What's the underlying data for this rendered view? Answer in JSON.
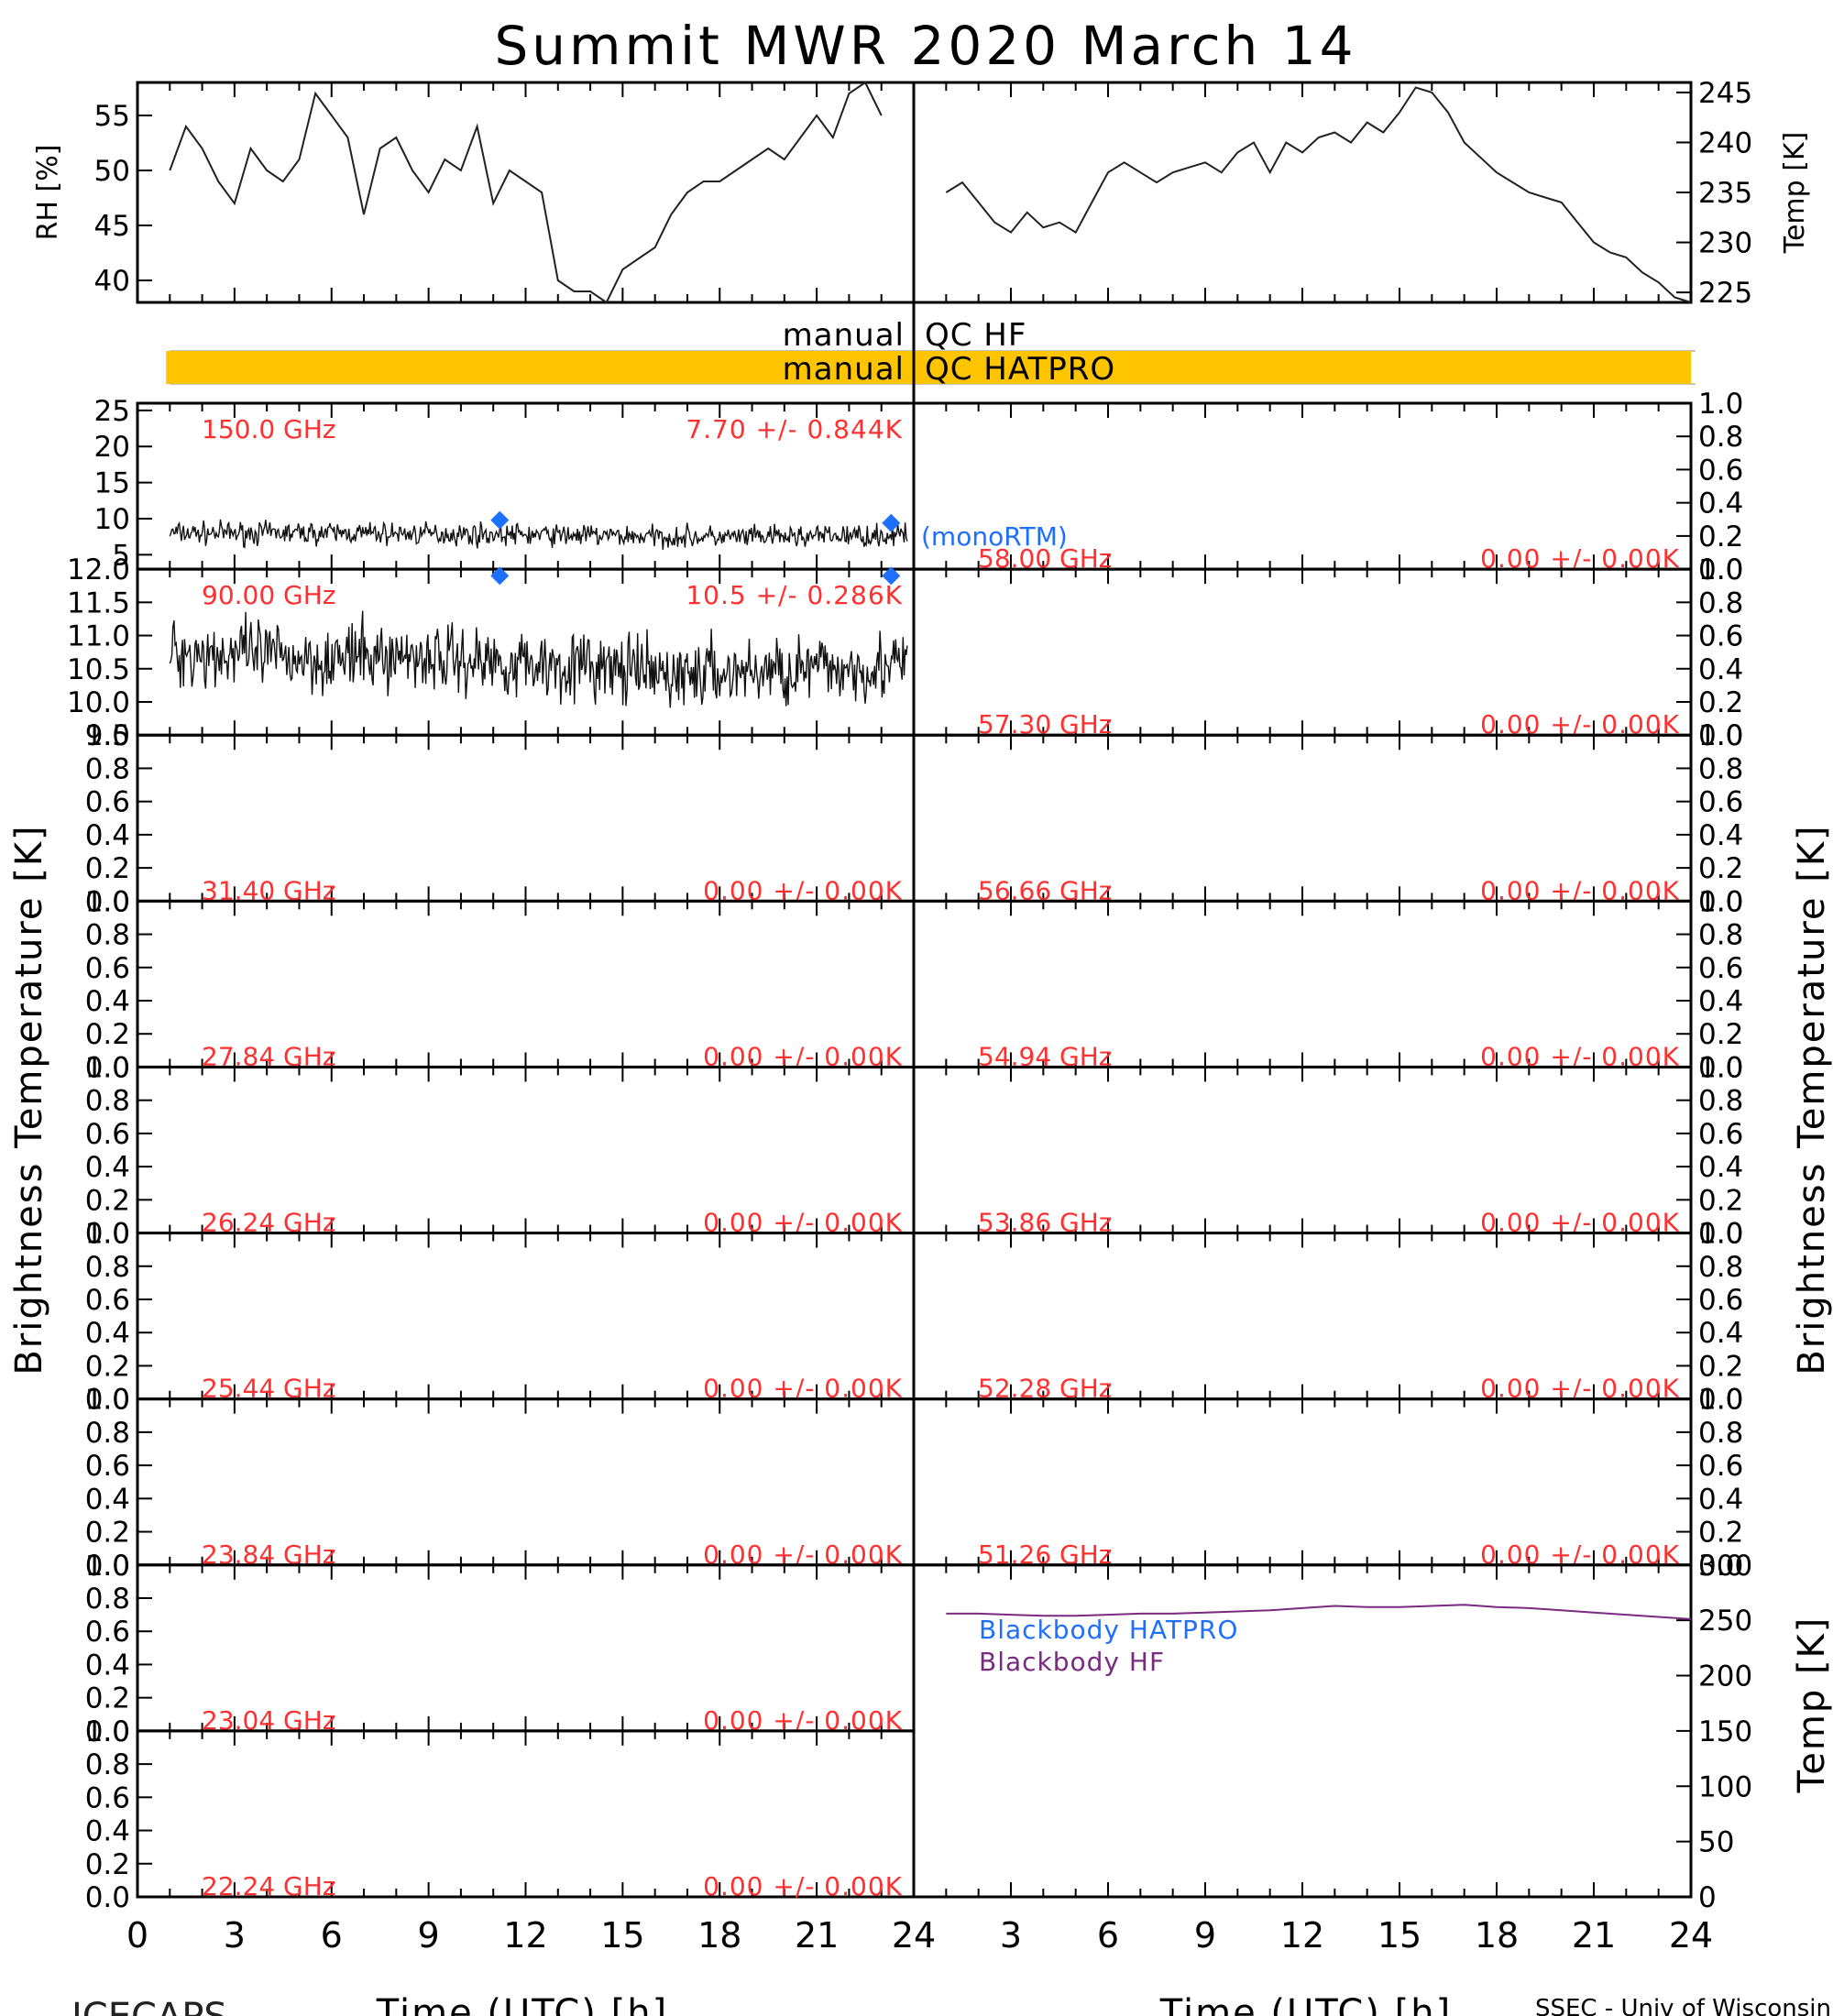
{
  "title": "Summit MWR 2020 March 14",
  "footer": {
    "left": "ICECAPS",
    "right": "SSEC - Univ of Wisconsin"
  },
  "colors": {
    "accent_text": "#ff3030",
    "qc_bar": "#ffc400",
    "blue": "#1f6fff",
    "purple": "#7a2a80",
    "ink": "#000000"
  },
  "x_axis": {
    "label": "Time (UTC) [h]",
    "ticks": [
      "0",
      "3",
      "6",
      "9",
      "12",
      "15",
      "18",
      "21",
      "24"
    ],
    "xlim": [
      0,
      24
    ]
  },
  "side_labels": {
    "left": "Brightness Temperature [K]",
    "right": "Brightness Temperature [K]",
    "bb_right": "Temp [K]"
  },
  "chart_data": [
    {
      "type": "line",
      "id": "rh",
      "ylabel": "RH [%]",
      "ylim": [
        38,
        58
      ],
      "yticks": [
        "40",
        "45",
        "50",
        "55"
      ],
      "x": [
        1.0,
        1.5,
        2.0,
        2.5,
        3.0,
        3.5,
        4.0,
        4.5,
        5.0,
        5.5,
        6.0,
        6.5,
        7.0,
        7.5,
        8.0,
        8.5,
        9.0,
        9.5,
        10.0,
        10.5,
        11.0,
        11.5,
        12.0,
        12.5,
        13.0,
        13.5,
        14.0,
        14.5,
        15.0,
        15.5,
        16.0,
        16.5,
        17.0,
        17.5,
        18.0,
        18.5,
        19.0,
        19.5,
        20.0,
        20.5,
        21.0,
        21.5,
        22.0,
        22.5,
        23.0
      ],
      "y": [
        50.0,
        54.0,
        52.0,
        49.0,
        47.0,
        52.0,
        50.0,
        49.0,
        51.0,
        57.0,
        55.0,
        53.0,
        46.0,
        52.0,
        53.0,
        50.0,
        48.0,
        51.0,
        50.0,
        54.0,
        47.0,
        50.0,
        49.0,
        48.0,
        40.0,
        39.0,
        39.0,
        38.0,
        41.0,
        42.0,
        43.0,
        46.0,
        48.0,
        49.0,
        49.0,
        50.0,
        51.0,
        52.0,
        51.0,
        53.0,
        55.0,
        53.0,
        57.0,
        58.0,
        55.0
      ]
    },
    {
      "type": "line",
      "id": "temp",
      "ylabel": "Temp [K]",
      "ylim": [
        224,
        246
      ],
      "yticks": [
        "225",
        "230",
        "235",
        "240",
        "245"
      ],
      "x": [
        1.0,
        1.5,
        2.0,
        2.5,
        3.0,
        3.5,
        4.0,
        4.5,
        5.0,
        5.5,
        6.0,
        6.5,
        7.0,
        7.5,
        8.0,
        8.5,
        9.0,
        9.5,
        10.0,
        10.5,
        11.0,
        11.5,
        12.0,
        12.5,
        13.0,
        13.5,
        14.0,
        14.5,
        15.0,
        15.5,
        16.0,
        16.5,
        17.0,
        17.5,
        18.0,
        18.5,
        19.0,
        19.5,
        20.0,
        20.5,
        21.0,
        21.5,
        22.0,
        22.5,
        23.0,
        23.5,
        24.0
      ],
      "y": [
        235.0,
        236.0,
        234.0,
        232.0,
        231.0,
        233.0,
        231.5,
        232.0,
        231.0,
        234.0,
        237.0,
        238.0,
        237.0,
        236.0,
        237.0,
        237.5,
        238.0,
        237.0,
        239.0,
        240.0,
        237.0,
        240.0,
        239.0,
        240.5,
        241.0,
        240.0,
        242.0,
        241.0,
        243.0,
        245.5,
        245.0,
        243.0,
        240.0,
        238.5,
        237.0,
        236.0,
        235.0,
        234.5,
        234.0,
        232.0,
        230.0,
        229.0,
        228.5,
        227.0,
        226.0,
        224.5,
        224.0
      ]
    },
    {
      "type": "timeline",
      "id": "qc",
      "rows": [
        {
          "label": "manual QC HF",
          "bar": false
        },
        {
          "label": "manual QC HATPRO",
          "bar": true,
          "x_range": [
            0.8,
            24.0
          ]
        }
      ]
    },
    {
      "type": "line",
      "id": "tb-150",
      "channel": "150.0 GHz",
      "stat": "7.70 +/- 0.844K",
      "ylim": [
        3,
        26
      ],
      "yticks": [
        "5",
        "10",
        "15",
        "20",
        "25"
      ],
      "mean": 7.7,
      "noise": 0.844,
      "y_trend": [
        8.0,
        8.0,
        8.0,
        7.9,
        7.8,
        7.7,
        7.5,
        7.4,
        7.6,
        7.7
      ],
      "markers": [
        {
          "x": 11.2,
          "y": 9.8
        },
        {
          "x": 23.3,
          "y": 9.4
        }
      ],
      "legend_text": "(monoRTM)"
    },
    {
      "type": "line",
      "id": "tb-90",
      "channel": "90.00 GHz",
      "stat": "10.5 +/- 0.286K",
      "ylim": [
        9.5,
        12.0
      ],
      "yticks": [
        "9.5",
        "10.0",
        "10.5",
        "11.0",
        "11.5",
        "12.0"
      ],
      "mean": 10.5,
      "noise": 0.286,
      "y_trend": [
        10.75,
        10.7,
        10.65,
        10.7,
        10.6,
        10.55,
        10.4,
        10.45,
        10.5,
        10.55
      ],
      "markers": [
        {
          "x": 11.2,
          "y": 11.9
        },
        {
          "x": 23.3,
          "y": 11.9
        }
      ]
    },
    {
      "type": "line",
      "id": "tb-31.40",
      "channel": "31.40 GHz",
      "stat": "0.00 +/- 0.00K",
      "ylim": [
        0,
        1
      ],
      "yticks": [
        "0.0",
        "0.2",
        "0.4",
        "0.6",
        "0.8",
        "1.0"
      ]
    },
    {
      "type": "line",
      "id": "tb-27.84",
      "channel": "27.84 GHz",
      "stat": "0.00 +/- 0.00K",
      "ylim": [
        0,
        1
      ],
      "yticks": [
        "0.0",
        "0.2",
        "0.4",
        "0.6",
        "0.8",
        "1.0"
      ]
    },
    {
      "type": "line",
      "id": "tb-26.24",
      "channel": "26.24 GHz",
      "stat": "0.00 +/- 0.00K",
      "ylim": [
        0,
        1
      ],
      "yticks": [
        "0.0",
        "0.2",
        "0.4",
        "0.6",
        "0.8",
        "1.0"
      ]
    },
    {
      "type": "line",
      "id": "tb-25.44",
      "channel": "25.44 GHz",
      "stat": "0.00 +/- 0.00K",
      "ylim": [
        0,
        1
      ],
      "yticks": [
        "0.0",
        "0.2",
        "0.4",
        "0.6",
        "0.8",
        "1.0"
      ]
    },
    {
      "type": "line",
      "id": "tb-23.84",
      "channel": "23.84 GHz",
      "stat": "0.00 +/- 0.00K",
      "ylim": [
        0,
        1
      ],
      "yticks": [
        "0.0",
        "0.2",
        "0.4",
        "0.6",
        "0.8",
        "1.0"
      ]
    },
    {
      "type": "line",
      "id": "tb-23.04",
      "channel": "23.04 GHz",
      "stat": "0.00 +/- 0.00K",
      "ylim": [
        0,
        1
      ],
      "yticks": [
        "0.0",
        "0.2",
        "0.4",
        "0.6",
        "0.8",
        "1.0"
      ]
    },
    {
      "type": "line",
      "id": "tb-22.24",
      "channel": "22.24 GHz",
      "stat": "0.00 +/- 0.00K",
      "ylim": [
        0,
        1
      ],
      "yticks": [
        "0.0",
        "0.2",
        "0.4",
        "0.6",
        "0.8",
        "1.0"
      ]
    },
    {
      "type": "line",
      "id": "tb-58.00",
      "channel": "58.00 GHz",
      "stat": "0.00 +/- 0.00K",
      "ylim": [
        0,
        1
      ],
      "yticks": [
        "0.0",
        "0.2",
        "0.4",
        "0.6",
        "0.8",
        "1.0"
      ]
    },
    {
      "type": "line",
      "id": "tb-57.30",
      "channel": "57.30 GHz",
      "stat": "0.00 +/- 0.00K",
      "ylim": [
        0,
        1
      ],
      "yticks": [
        "0.0",
        "0.2",
        "0.4",
        "0.6",
        "0.8",
        "1.0"
      ]
    },
    {
      "type": "line",
      "id": "tb-56.66",
      "channel": "56.66 GHz",
      "stat": "0.00 +/- 0.00K",
      "ylim": [
        0,
        1
      ],
      "yticks": [
        "0.0",
        "0.2",
        "0.4",
        "0.6",
        "0.8",
        "1.0"
      ]
    },
    {
      "type": "line",
      "id": "tb-54.94",
      "channel": "54.94 GHz",
      "stat": "0.00 +/- 0.00K",
      "ylim": [
        0,
        1
      ],
      "yticks": [
        "0.0",
        "0.2",
        "0.4",
        "0.6",
        "0.8",
        "1.0"
      ]
    },
    {
      "type": "line",
      "id": "tb-53.86",
      "channel": "53.86 GHz",
      "stat": "0.00 +/- 0.00K",
      "ylim": [
        0,
        1
      ],
      "yticks": [
        "0.0",
        "0.2",
        "0.4",
        "0.6",
        "0.8",
        "1.0"
      ]
    },
    {
      "type": "line",
      "id": "tb-52.28",
      "channel": "52.28 GHz",
      "stat": "0.00 +/- 0.00K",
      "ylim": [
        0,
        1
      ],
      "yticks": [
        "0.0",
        "0.2",
        "0.4",
        "0.6",
        "0.8",
        "1.0"
      ]
    },
    {
      "type": "line",
      "id": "tb-51.26",
      "channel": "51.26 GHz",
      "stat": "0.00 +/- 0.00K",
      "ylim": [
        0,
        1
      ],
      "yticks": [
        "0.0",
        "0.2",
        "0.4",
        "0.6",
        "0.8",
        "1.0"
      ]
    },
    {
      "type": "line",
      "id": "blackbody",
      "ylim": [
        0,
        300
      ],
      "yticks": [
        "0",
        "50",
        "100",
        "150",
        "200",
        "250",
        "300"
      ],
      "series": [
        {
          "name": "Blackbody HATPRO",
          "x": [],
          "y": []
        },
        {
          "name": "Blackbody HF",
          "x": [
            1,
            2,
            3,
            4,
            5,
            6,
            7,
            8,
            9,
            10,
            11,
            12,
            13,
            14,
            15,
            16,
            17,
            18,
            19,
            20,
            21,
            22,
            23,
            24
          ],
          "y": [
            256,
            256,
            255,
            254,
            254,
            255,
            256,
            256,
            257,
            258,
            259,
            261,
            263,
            262,
            262,
            263,
            264,
            262,
            261,
            259,
            257,
            255,
            253,
            251
          ]
        }
      ]
    }
  ]
}
